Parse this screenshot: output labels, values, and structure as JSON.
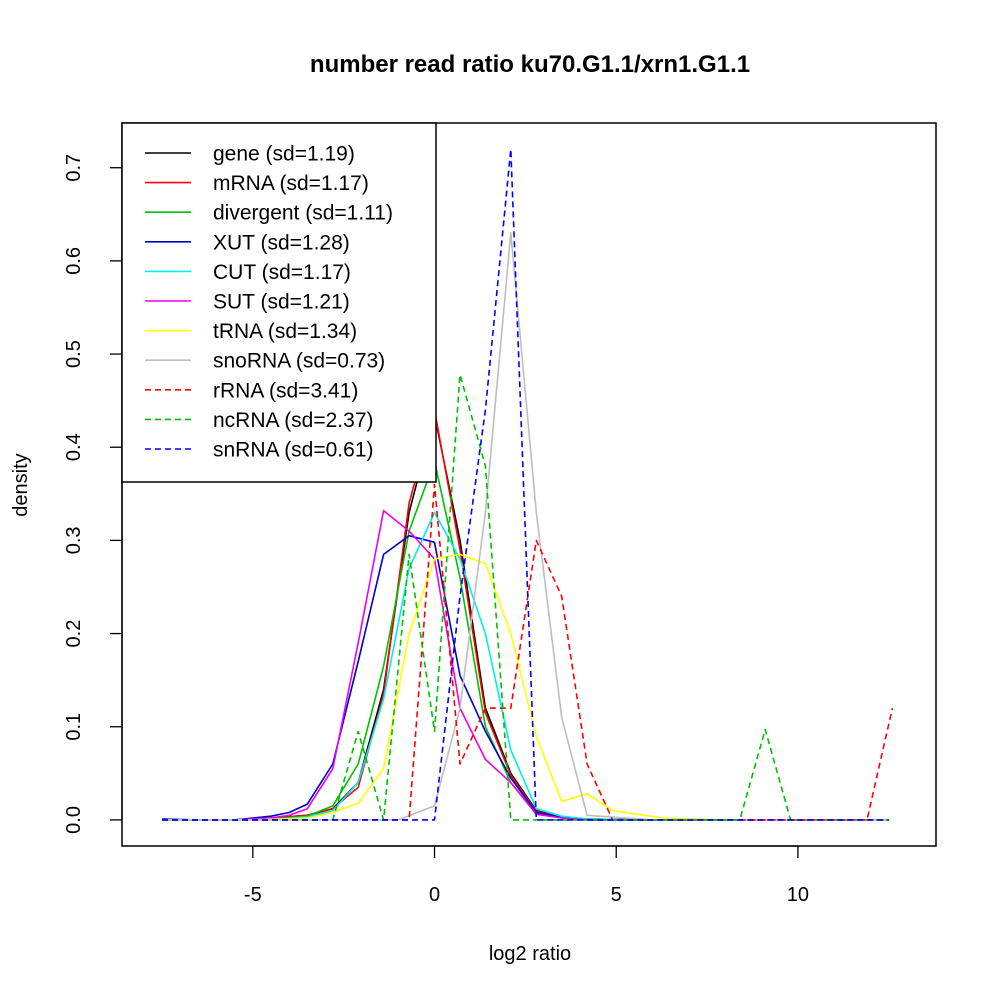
{
  "chart_data": {
    "type": "line",
    "title": "number read ratio ku70.G1.1/xrn1.G1.1",
    "xlabel": "log2 ratio",
    "ylabel": "density",
    "xlim": [
      -8.6,
      13.8
    ],
    "ylim": [
      -0.028,
      0.748
    ],
    "xticks": [
      -5,
      0,
      5,
      10
    ],
    "yticks": [
      0.0,
      0.1,
      0.2,
      0.3,
      0.4,
      0.5,
      0.6,
      0.7
    ],
    "ytick_labels": [
      "0.0",
      "0.1",
      "0.2",
      "0.3",
      "0.4",
      "0.5",
      "0.6",
      "0.7"
    ],
    "legend_position": "top-left",
    "series": [
      {
        "name": "gene (sd=1.19)",
        "color": "#000000",
        "dash": "solid",
        "x": [
          -7.5,
          -6.5,
          -5.5,
          -4.5,
          -3.5,
          -2.8,
          -2.1,
          -1.4,
          -0.7,
          0.0,
          0.7,
          1.4,
          2.1,
          2.8,
          3.5,
          4.2,
          6.0,
          8.0,
          10.0,
          12.5
        ],
        "y": [
          0.0,
          0.0,
          0.0,
          0.002,
          0.005,
          0.012,
          0.04,
          0.14,
          0.33,
          0.435,
          0.3,
          0.12,
          0.05,
          0.01,
          0.003,
          0.001,
          0.0,
          0.0,
          0.0,
          0.0
        ]
      },
      {
        "name": "mRNA (sd=1.17)",
        "color": "#ff0000",
        "dash": "solid",
        "x": [
          -7.5,
          -6.5,
          -5.5,
          -4.5,
          -3.5,
          -2.8,
          -2.1,
          -1.4,
          -0.7,
          0.0,
          0.7,
          1.4,
          2.1,
          2.8,
          3.5,
          4.2,
          6.0,
          8.0,
          10.0,
          12.5
        ],
        "y": [
          0.0,
          0.0,
          0.0,
          0.002,
          0.005,
          0.012,
          0.035,
          0.135,
          0.34,
          0.44,
          0.29,
          0.115,
          0.048,
          0.009,
          0.003,
          0.001,
          0.0,
          0.0,
          0.0,
          0.0
        ]
      },
      {
        "name": "divergent (sd=1.11)",
        "color": "#00c000",
        "dash": "solid",
        "x": [
          -7.5,
          -6.5,
          -5.5,
          -4.5,
          -3.5,
          -2.8,
          -2.1,
          -1.4,
          -0.7,
          0.0,
          0.7,
          1.4,
          2.1,
          2.8,
          3.5,
          4.2,
          6.0,
          8.0,
          10.0,
          12.5
        ],
        "y": [
          0.0,
          0.0,
          0.0,
          0.001,
          0.004,
          0.015,
          0.06,
          0.165,
          0.31,
          0.385,
          0.26,
          0.1,
          0.04,
          0.007,
          0.002,
          0.0,
          0.0,
          0.0,
          0.0,
          0.0
        ]
      },
      {
        "name": "XUT (sd=1.28)",
        "color": "#0000cd",
        "dash": "solid",
        "x": [
          -7.5,
          -6.5,
          -5.5,
          -4.5,
          -4.0,
          -3.5,
          -2.8,
          -2.1,
          -1.4,
          -0.7,
          0.0,
          0.7,
          1.4,
          2.1,
          2.8,
          3.5,
          4.2,
          6.0,
          8.0,
          10.0,
          12.5
        ],
        "y": [
          0.001,
          0.0,
          0.0,
          0.004,
          0.008,
          0.017,
          0.06,
          0.17,
          0.285,
          0.305,
          0.298,
          0.155,
          0.095,
          0.045,
          0.008,
          0.003,
          0.001,
          0.0,
          0.0,
          0.0,
          0.0
        ]
      },
      {
        "name": "CUT (sd=1.17)",
        "color": "#00eeee",
        "dash": "solid",
        "x": [
          -7.5,
          -6.5,
          -5.5,
          -4.5,
          -3.5,
          -2.8,
          -2.1,
          -1.4,
          -0.7,
          0.0,
          0.7,
          1.4,
          2.1,
          2.8,
          3.5,
          4.2,
          6.0,
          8.0,
          10.0,
          12.5
        ],
        "y": [
          0.0,
          0.0,
          0.0,
          0.0,
          0.003,
          0.01,
          0.04,
          0.13,
          0.27,
          0.33,
          0.28,
          0.2,
          0.075,
          0.012,
          0.004,
          0.001,
          0.0,
          0.0,
          0.0,
          0.0
        ]
      },
      {
        "name": "SUT (sd=1.21)",
        "color": "#ee00ee",
        "dash": "solid",
        "x": [
          -7.5,
          -6.5,
          -5.5,
          -4.5,
          -4.0,
          -3.5,
          -2.8,
          -2.1,
          -1.4,
          -0.7,
          0.0,
          0.7,
          1.4,
          2.1,
          2.8,
          3.5,
          4.2,
          6.0,
          8.0,
          10.0,
          12.5
        ],
        "y": [
          0.0,
          0.0,
          0.0,
          0.002,
          0.005,
          0.012,
          0.055,
          0.19,
          0.332,
          0.31,
          0.28,
          0.12,
          0.065,
          0.04,
          0.006,
          0.002,
          0.0,
          0.0,
          0.0,
          0.0,
          0.0
        ]
      },
      {
        "name": "tRNA (sd=1.34)",
        "color": "#ffff00",
        "dash": "solid",
        "x": [
          -7.5,
          -5.0,
          -3.5,
          -2.8,
          -2.1,
          -1.4,
          -0.7,
          0.0,
          0.7,
          1.4,
          2.1,
          2.8,
          3.5,
          4.2,
          4.9,
          5.6,
          6.3,
          8.0,
          10.0,
          12.5
        ],
        "y": [
          0.0,
          0.0,
          0.002,
          0.008,
          0.018,
          0.055,
          0.2,
          0.28,
          0.285,
          0.275,
          0.2,
          0.09,
          0.02,
          0.028,
          0.01,
          0.006,
          0.002,
          0.0,
          0.0,
          0.0
        ]
      },
      {
        "name": "snoRNA (sd=0.73)",
        "color": "#bebebe",
        "dash": "solid",
        "x": [
          -7.5,
          -1.0,
          0.0,
          0.7,
          1.4,
          2.1,
          2.8,
          3.5,
          4.2,
          6.0,
          10.0,
          12.5
        ],
        "y": [
          0.0,
          0.0,
          0.015,
          0.12,
          0.33,
          0.63,
          0.33,
          0.11,
          0.005,
          0.0,
          0.0,
          0.0
        ]
      },
      {
        "name": "rRNA (sd=3.41)",
        "color": "#ff0000",
        "dash": "dashed",
        "x": [
          -7.5,
          -0.7,
          0.0,
          0.7,
          1.4,
          2.1,
          2.8,
          3.5,
          4.2,
          4.9,
          6.3,
          8.0,
          10.0,
          11.9,
          12.6
        ],
        "y": [
          0.0,
          0.0,
          0.36,
          0.06,
          0.12,
          0.12,
          0.3,
          0.24,
          0.06,
          0.0,
          0.0,
          0.0,
          0.0,
          0.0,
          0.12
        ]
      },
      {
        "name": "ncRNA (sd=2.37)",
        "color": "#00c000",
        "dash": "dashed",
        "x": [
          -7.5,
          -2.8,
          -2.1,
          -1.4,
          -0.7,
          0.0,
          0.7,
          1.4,
          2.1,
          2.8,
          8.4,
          9.1,
          9.8,
          12.5
        ],
        "y": [
          0.0,
          0.0,
          0.095,
          0.0,
          0.285,
          0.095,
          0.478,
          0.38,
          0.0,
          0.0,
          0.0,
          0.097,
          0.0,
          0.0
        ]
      },
      {
        "name": "snRNA (sd=0.61)",
        "color": "#0000ff",
        "dash": "dashed",
        "x": [
          -7.5,
          0.0,
          0.7,
          1.4,
          2.1,
          2.8,
          3.5,
          12.5
        ],
        "y": [
          0.0,
          0.0,
          0.24,
          0.44,
          0.72,
          0.0,
          0.0,
          0.0
        ]
      }
    ]
  }
}
